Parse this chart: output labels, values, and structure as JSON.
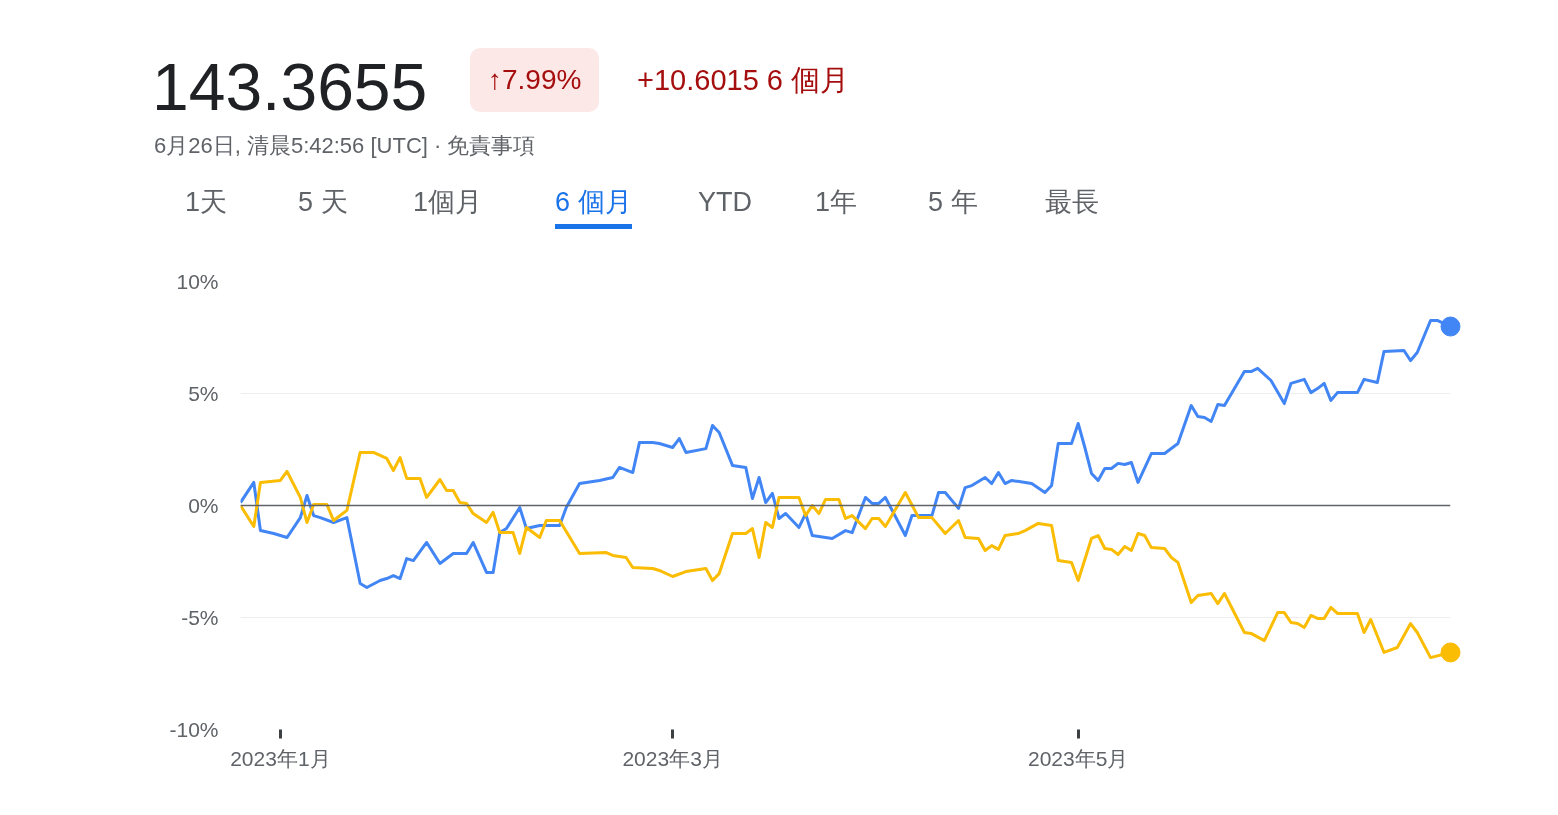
{
  "chart_data": {
    "type": "line",
    "title": "143.3655",
    "subtitle": "6月26日, 清晨5:42:56 [UTC] · 免責事項",
    "annotations": [
      "↑7.99%",
      "+10.6015 6 個月",
      "1天",
      "5 天",
      "1個月",
      "6 個月",
      "YTD",
      "1年",
      "5 年",
      "最長"
    ],
    "xlim": [
      "2022-12-26",
      "2023-06-26"
    ],
    "xticks": [
      {
        "value": "2023-01-01",
        "label": "2023年1月"
      },
      {
        "value": "2023-03-01",
        "label": "2023年3月"
      },
      {
        "value": "2023-05-01",
        "label": "2023年5月"
      }
    ],
    "ylim": [
      -10,
      10
    ],
    "yticks": [
      {
        "value": 10,
        "label": "10%"
      },
      {
        "value": 5,
        "label": "5%"
      },
      {
        "value": 0,
        "label": "0%"
      },
      {
        "value": -5,
        "label": "-5%"
      },
      {
        "value": -10,
        "label": "-10%"
      }
    ],
    "grid": "y",
    "line_style": "solid",
    "ref_lines": [
      {
        "axis": "y",
        "value": 0,
        "color": "#5f6368"
      }
    ],
    "series": [
      {
        "color": "#4285f4",
        "x": [
          "2022-12-26",
          "2022-12-28",
          "2022-12-29",
          "2022-12-31",
          "2023-01-02",
          "2023-01-04",
          "2023-01-05",
          "2023-01-06",
          "2023-01-07",
          "2023-01-09",
          "2023-01-11",
          "2023-01-13",
          "2023-01-14",
          "2023-01-16",
          "2023-01-17",
          "2023-01-18",
          "2023-01-19",
          "2023-01-20",
          "2023-01-21",
          "2023-01-23",
          "2023-01-25",
          "2023-01-27",
          "2023-01-29",
          "2023-01-30",
          "2023-02-01",
          "2023-02-02",
          "2023-02-03",
          "2023-02-04",
          "2023-02-06",
          "2023-02-07",
          "2023-02-09",
          "2023-02-12",
          "2023-02-13",
          "2023-02-15",
          "2023-02-18",
          "2023-02-20",
          "2023-02-21",
          "2023-02-23",
          "2023-02-24",
          "2023-02-26",
          "2023-02-27",
          "2023-03-01",
          "2023-03-02",
          "2023-03-03",
          "2023-03-06",
          "2023-03-07",
          "2023-03-08",
          "2023-03-10",
          "2023-03-12",
          "2023-03-13",
          "2023-03-14",
          "2023-03-15",
          "2023-03-16",
          "2023-03-17",
          "2023-03-18",
          "2023-03-20",
          "2023-03-21",
          "2023-03-22",
          "2023-03-25",
          "2023-03-27",
          "2023-03-28",
          "2023-03-30",
          "2023-03-31",
          "2023-04-01",
          "2023-04-02",
          "2023-04-05",
          "2023-04-06",
          "2023-04-09",
          "2023-04-10",
          "2023-04-11",
          "2023-04-13",
          "2023-04-14",
          "2023-04-15",
          "2023-04-17",
          "2023-04-18",
          "2023-04-19",
          "2023-04-20",
          "2023-04-21",
          "2023-04-24",
          "2023-04-26",
          "2023-04-27",
          "2023-04-28",
          "2023-04-30",
          "2023-05-01",
          "2023-05-02",
          "2023-05-03",
          "2023-05-04",
          "2023-05-05",
          "2023-05-06",
          "2023-05-07",
          "2023-05-08",
          "2023-05-09",
          "2023-05-10",
          "2023-05-12",
          "2023-05-14",
          "2023-05-16",
          "2023-05-18",
          "2023-05-19",
          "2023-05-20",
          "2023-05-21",
          "2023-05-22",
          "2023-05-23",
          "2023-05-26",
          "2023-05-27",
          "2023-05-28",
          "2023-05-30",
          "2023-06-01",
          "2023-06-02",
          "2023-06-04",
          "2023-06-05",
          "2023-06-06",
          "2023-06-07",
          "2023-06-08",
          "2023-06-09",
          "2023-06-12",
          "2023-06-13",
          "2023-06-15",
          "2023-06-16",
          "2023-06-19",
          "2023-06-20",
          "2023-06-21",
          "2023-06-23",
          "2023-06-24",
          "2023-06-26"
        ],
        "values": [
          0.13,
          1.03,
          -1.12,
          -1.25,
          -1.43,
          -0.54,
          0.45,
          -0.45,
          -0.54,
          -0.76,
          -0.54,
          -3.48,
          -3.66,
          -3.35,
          -3.26,
          -3.13,
          -3.26,
          -2.37,
          -2.46,
          -1.65,
          -2.59,
          -2.14,
          -2.14,
          -1.65,
          -2.99,
          -2.99,
          -1.21,
          -1.03,
          -0.09,
          -1.03,
          -0.89,
          -0.89,
          -0.09,
          0.98,
          1.12,
          1.25,
          1.7,
          1.47,
          2.81,
          2.81,
          2.77,
          2.59,
          2.99,
          2.37,
          2.54,
          3.57,
          3.26,
          1.79,
          1.7,
          0.31,
          1.25,
          0.13,
          0.54,
          -0.58,
          -0.36,
          -0.98,
          -0.36,
          -1.34,
          -1.47,
          -1.12,
          -1.21,
          0.36,
          0.09,
          0.09,
          0.36,
          -1.34,
          -0.45,
          -0.45,
          0.58,
          0.58,
          -0.13,
          0.8,
          0.89,
          1.25,
          0.98,
          1.47,
          0.98,
          1.12,
          0.98,
          0.58,
          0.89,
          2.77,
          2.77,
          3.66,
          2.59,
          1.43,
          1.12,
          1.65,
          1.65,
          1.88,
          1.83,
          1.92,
          1.03,
          2.32,
          2.32,
          2.77,
          4.46,
          3.97,
          3.93,
          3.75,
          4.51,
          4.46,
          5.98,
          5.98,
          6.12,
          5.58,
          4.55,
          5.45,
          5.63,
          5.04,
          5.22,
          5.45,
          4.69,
          5.04,
          5.04,
          5.63,
          5.49,
          6.88,
          6.92,
          6.47,
          6.83,
          8.26,
          8.26,
          7.99
        ]
      },
      {
        "color": "#fbbc04",
        "x": [
          "2022-12-26",
          "2022-12-28",
          "2022-12-29",
          "2023-01-01",
          "2023-01-02",
          "2023-01-04",
          "2023-01-05",
          "2023-01-06",
          "2023-01-08",
          "2023-01-09",
          "2023-01-11",
          "2023-01-13",
          "2023-01-15",
          "2023-01-17",
          "2023-01-18",
          "2023-01-19",
          "2023-01-20",
          "2023-01-22",
          "2023-01-23",
          "2023-01-25",
          "2023-01-26",
          "2023-01-27",
          "2023-01-28",
          "2023-01-29",
          "2023-01-30",
          "2023-02-01",
          "2023-02-02",
          "2023-02-03",
          "2023-02-05",
          "2023-02-06",
          "2023-02-07",
          "2023-02-09",
          "2023-02-10",
          "2023-02-12",
          "2023-02-15",
          "2023-02-19",
          "2023-02-20",
          "2023-02-22",
          "2023-02-23",
          "2023-02-26",
          "2023-02-27",
          "2023-03-01",
          "2023-03-03",
          "2023-03-06",
          "2023-03-07",
          "2023-03-08",
          "2023-03-10",
          "2023-03-12",
          "2023-03-13",
          "2023-03-14",
          "2023-03-15",
          "2023-03-16",
          "2023-03-17",
          "2023-03-20",
          "2023-03-21",
          "2023-03-22",
          "2023-03-23",
          "2023-03-24",
          "2023-03-26",
          "2023-03-27",
          "2023-03-28",
          "2023-03-30",
          "2023-03-31",
          "2023-04-01",
          "2023-04-02",
          "2023-04-05",
          "2023-04-07",
          "2023-04-09",
          "2023-04-11",
          "2023-04-13",
          "2023-04-14",
          "2023-04-16",
          "2023-04-17",
          "2023-04-18",
          "2023-04-19",
          "2023-04-20",
          "2023-04-22",
          "2023-04-23",
          "2023-04-25",
          "2023-04-27",
          "2023-04-28",
          "2023-04-30",
          "2023-05-01",
          "2023-05-03",
          "2023-05-04",
          "2023-05-05",
          "2023-05-06",
          "2023-05-07",
          "2023-05-08",
          "2023-05-09",
          "2023-05-10",
          "2023-05-11",
          "2023-05-12",
          "2023-05-14",
          "2023-05-15",
          "2023-05-16",
          "2023-05-18",
          "2023-05-19",
          "2023-05-21",
          "2023-05-22",
          "2023-05-23",
          "2023-05-26",
          "2023-05-27",
          "2023-05-29",
          "2023-05-31",
          "2023-06-01",
          "2023-06-02",
          "2023-06-03",
          "2023-06-04",
          "2023-06-05",
          "2023-06-06",
          "2023-06-07",
          "2023-06-08",
          "2023-06-09",
          "2023-06-12",
          "2023-06-13",
          "2023-06-14",
          "2023-06-16",
          "2023-06-18",
          "2023-06-20",
          "2023-06-21",
          "2023-06-23",
          "2023-06-26"
        ],
        "values": [
          0,
          -0.94,
          1.03,
          1.12,
          1.52,
          0.36,
          -0.76,
          0.04,
          0.04,
          -0.67,
          -0.22,
          2.37,
          2.37,
          2.1,
          1.56,
          2.14,
          1.21,
          1.21,
          0.36,
          1.16,
          0.67,
          0.67,
          0.13,
          0.09,
          -0.36,
          -0.76,
          -0.31,
          -1.21,
          -1.21,
          -2.14,
          -0.98,
          -1.43,
          -0.67,
          -0.67,
          -2.14,
          -2.1,
          -2.23,
          -2.32,
          -2.77,
          -2.81,
          -2.9,
          -3.17,
          -2.95,
          -2.81,
          -3.35,
          -3.04,
          -1.25,
          -1.25,
          -1.03,
          -2.32,
          -0.76,
          -0.98,
          0.36,
          0.36,
          -0.45,
          0,
          -0.36,
          0.27,
          0.27,
          -0.58,
          -0.45,
          -1.03,
          -0.58,
          -0.58,
          -0.94,
          0.58,
          -0.54,
          -0.54,
          -1.25,
          -0.67,
          -1.43,
          -1.47,
          -2.01,
          -1.79,
          -1.96,
          -1.34,
          -1.25,
          -1.12,
          -0.8,
          -0.89,
          -2.46,
          -2.54,
          -3.35,
          -1.47,
          -1.34,
          -1.92,
          -1.96,
          -2.19,
          -1.83,
          -2.01,
          -1.25,
          -1.34,
          -1.88,
          -1.92,
          -2.32,
          -2.54,
          -4.33,
          -4.02,
          -3.93,
          -4.38,
          -3.93,
          -5.67,
          -5.71,
          -6.03,
          -4.78,
          -4.78,
          -5.22,
          -5.27,
          -5.45,
          -4.91,
          -5.04,
          -5.04,
          -4.55,
          -4.82,
          -4.82,
          -5.67,
          -5.09,
          -6.56,
          -6.34,
          -5.27,
          -5.67,
          -6.79,
          -6.56
        ]
      },
      {
        "type": "scatter",
        "color": "#4285f4",
        "marker": "circle",
        "x": [
          "2023-06-26"
        ],
        "values": [
          7.99
        ]
      },
      {
        "type": "scatter",
        "color": "#fbbc04",
        "marker": "circle",
        "x": [
          "2023-06-26"
        ],
        "values": [
          -6.56
        ]
      }
    ]
  }
}
